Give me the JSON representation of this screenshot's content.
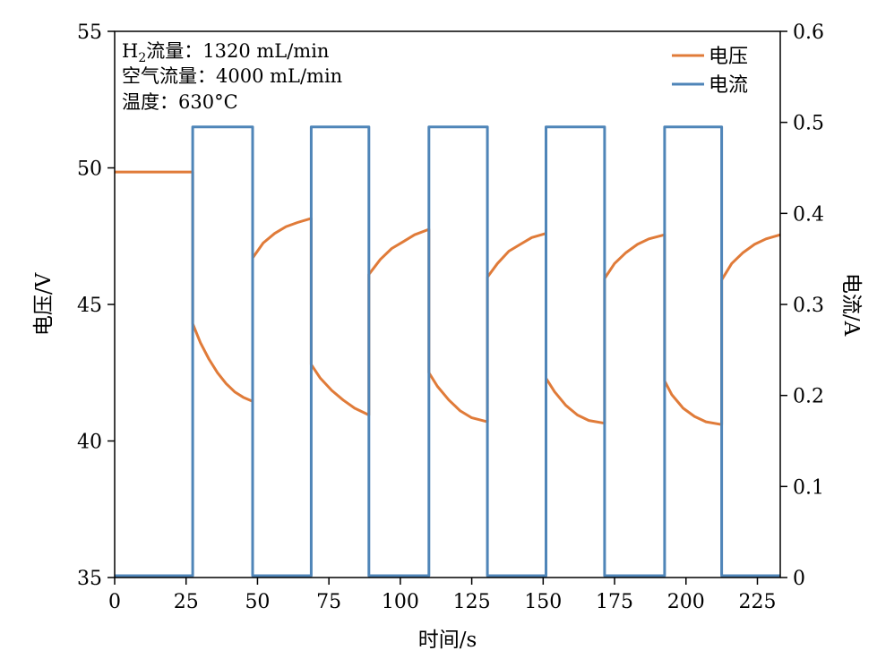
{
  "chart_data": {
    "type": "line",
    "xlabel": "时间/s",
    "ylabel_left": "电压/V",
    "ylabel_right": "电流/A",
    "xlim": [
      0,
      233
    ],
    "ylim_left": [
      35,
      55
    ],
    "ylim_right": [
      0,
      0.6
    ],
    "x_ticks": [
      0,
      25,
      50,
      75,
      100,
      125,
      150,
      175,
      200,
      225
    ],
    "y_left_ticks": [
      35,
      40,
      45,
      50,
      55
    ],
    "y_right_ticks": [
      0,
      0.1,
      0.2,
      0.3,
      0.4,
      0.5,
      0.6
    ],
    "y_right_tick_labels": [
      "0",
      "0.1",
      "0.2",
      "0.3",
      "0.4",
      "0.5",
      "0.6"
    ],
    "grid": false,
    "legend_position": "top-right",
    "annotations": [
      {
        "text_prefix": "H",
        "text_sub": "2",
        "text_suffix": "流量：1320 mL/min"
      },
      {
        "text": "空气流量：4000 mL/min"
      },
      {
        "text": "温度：630°C"
      }
    ],
    "series": [
      {
        "name": "电压",
        "axis": "left",
        "color": "#E07B39",
        "x": [
          0,
          27.3,
          27.3,
          30,
          33,
          36,
          39,
          42,
          45,
          48.3,
          48.3,
          52,
          56,
          60,
          64,
          68.8,
          68.8,
          72,
          76,
          80,
          84,
          89,
          89,
          93,
          97,
          101,
          105,
          110,
          110,
          113,
          117,
          121,
          125,
          130.5,
          130.5,
          134,
          138,
          142,
          146,
          151,
          151,
          154,
          158,
          162,
          166,
          171.5,
          171.5,
          175,
          179,
          183,
          187,
          192.5,
          192.5,
          195,
          199,
          203,
          207,
          212.5,
          212.5,
          216,
          220,
          224,
          228,
          233
        ],
        "y": [
          49.85,
          49.85,
          44.3,
          43.6,
          43.0,
          42.5,
          42.1,
          41.8,
          41.6,
          41.45,
          46.7,
          47.25,
          47.6,
          47.85,
          48.0,
          48.15,
          42.8,
          42.3,
          41.85,
          41.5,
          41.2,
          40.95,
          46.1,
          46.65,
          47.05,
          47.3,
          47.55,
          47.75,
          42.5,
          42.0,
          41.5,
          41.1,
          40.85,
          40.7,
          46.0,
          46.5,
          46.95,
          47.2,
          47.45,
          47.6,
          42.3,
          41.8,
          41.3,
          40.95,
          40.75,
          40.65,
          45.95,
          46.5,
          46.9,
          47.2,
          47.4,
          47.55,
          42.2,
          41.7,
          41.2,
          40.9,
          40.7,
          40.6,
          45.9,
          46.5,
          46.9,
          47.2,
          47.4,
          47.55
        ]
      },
      {
        "name": "电流",
        "axis": "right",
        "color": "#4F85B8",
        "x": [
          0,
          27.3,
          27.3,
          48.3,
          48.3,
          68.8,
          68.8,
          89,
          89,
          110,
          110,
          130.5,
          130.5,
          151,
          151,
          171.5,
          171.5,
          192.5,
          192.5,
          212.5,
          212.5,
          233
        ],
        "y": [
          0.002,
          0.002,
          0.495,
          0.495,
          0.002,
          0.002,
          0.495,
          0.495,
          0.002,
          0.002,
          0.495,
          0.495,
          0.002,
          0.002,
          0.495,
          0.495,
          0.002,
          0.002,
          0.495,
          0.495,
          0.002,
          0.002
        ]
      }
    ]
  }
}
